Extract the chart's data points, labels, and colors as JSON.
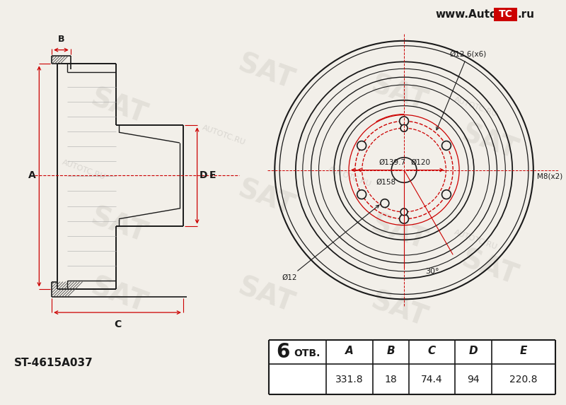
{
  "bg_color": "#f2efe9",
  "line_color": "#1a1a1a",
  "red_color": "#cc0000",
  "title_url": "www.AutoTC.ru",
  "part_number": "ST-4615A037",
  "bolt_count": "6",
  "otv_label": "ОТВ.",
  "dim_A": "331.8",
  "dim_B": "18",
  "dim_C": "74.4",
  "dim_D": "94",
  "dim_E": "220.8",
  "label_A": "A",
  "label_B": "B",
  "label_C": "C",
  "label_D": "D",
  "label_E": "E",
  "anno_d126": "Ø12.6(x6)",
  "anno_d139": "Ø139.7",
  "anno_d120": "Ø120",
  "anno_d158": "Ø158",
  "anno_d12": "Ø12",
  "anno_m8": "M8(x2)",
  "anno_30deg": "30°"
}
